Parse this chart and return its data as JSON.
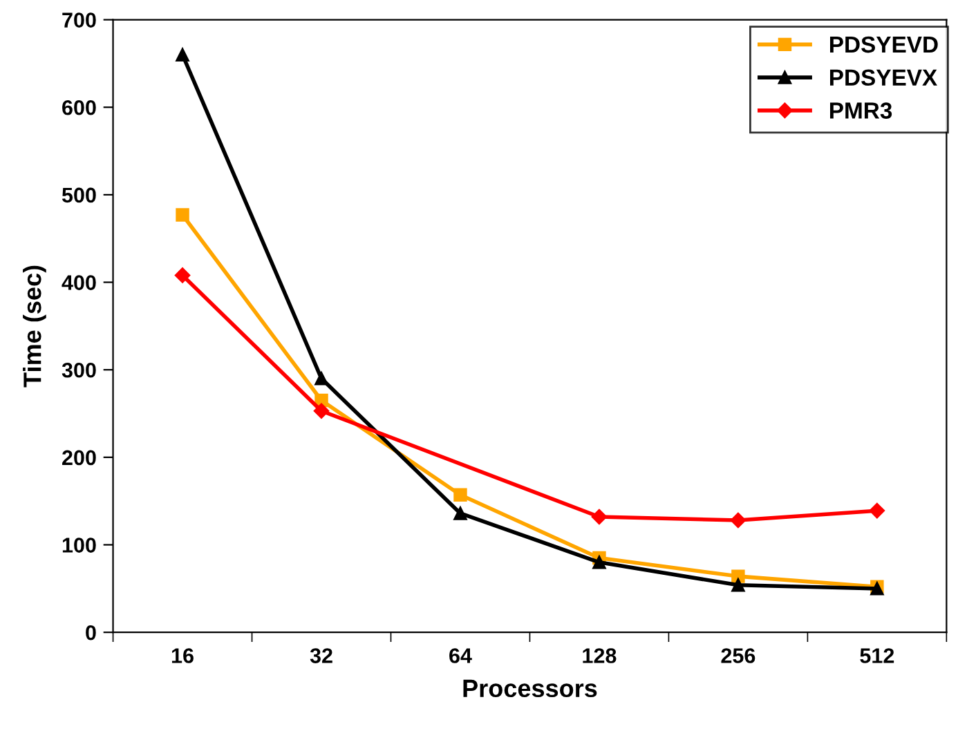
{
  "chart_data": {
    "type": "line",
    "xlabel": "Processors",
    "ylabel": "Time (sec)",
    "categories": [
      "16",
      "32",
      "64",
      "128",
      "256",
      "512"
    ],
    "series": [
      {
        "name": "PDSYEVD",
        "color": "#ffa500",
        "marker": "square",
        "values": [
          477,
          265,
          157,
          85,
          64,
          52
        ]
      },
      {
        "name": "PDSYEVX",
        "color": "#000000",
        "marker": "triangle",
        "values": [
          660,
          290,
          136,
          80,
          54,
          50
        ]
      },
      {
        "name": "PMR3",
        "color": "#ff0000",
        "marker": "diamond",
        "values": [
          408,
          253,
          null,
          132,
          128,
          139
        ]
      }
    ],
    "ylim": [
      0,
      700
    ],
    "yticks": [
      0,
      100,
      200,
      300,
      400,
      500,
      600,
      700
    ],
    "grid": false,
    "legend": "top right"
  }
}
